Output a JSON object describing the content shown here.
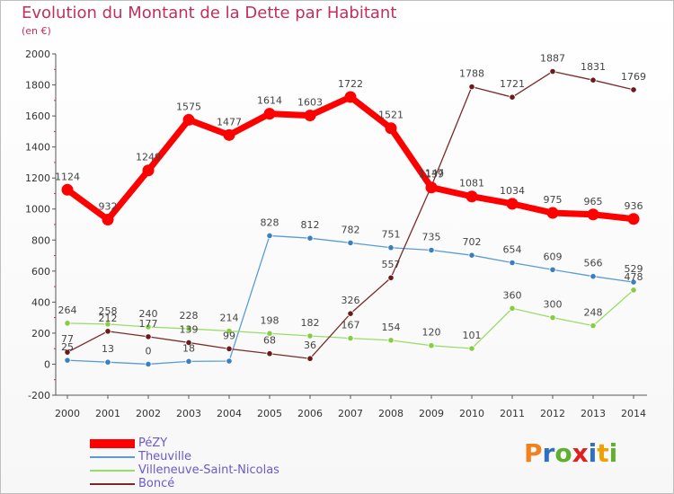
{
  "page": {
    "title": "Evolution du Montant de la Dette par Habitant",
    "subtitle": "(en €)"
  },
  "chart_data": {
    "type": "line",
    "title": "Evolution du Montant de la Dette par Habitant",
    "subtitle": "(en €)",
    "xlabel": "",
    "ylabel": "",
    "ylim": [
      -200,
      2000
    ],
    "yticks": [
      -200,
      0,
      200,
      400,
      600,
      800,
      1000,
      1200,
      1400,
      1600,
      1800,
      2000
    ],
    "categories": [
      "2000",
      "2001",
      "2002",
      "2003",
      "2004",
      "2005",
      "2006",
      "2007",
      "2008",
      "2009",
      "2010",
      "2011",
      "2012",
      "2013",
      "2014"
    ],
    "series": [
      {
        "name": "PéZY",
        "color": "#ff0000",
        "marker": "#ff0000",
        "bold": true,
        "values": [
          1124,
          932,
          1249,
          1575,
          1477,
          1614,
          1603,
          1722,
          1521,
          1139,
          1081,
          1034,
          975,
          965,
          936
        ],
        "labels": [
          "1124",
          "932",
          "1249",
          "1575",
          "1477",
          "1614",
          "1603",
          "1722",
          "1521",
          "1139",
          "1081",
          "1034",
          "975",
          "965",
          "936"
        ]
      },
      {
        "name": "Theuville",
        "color": "#5b9bd5",
        "marker": "#3a7fc0",
        "bold": false,
        "values": [
          25,
          13,
          0,
          18,
          20,
          828,
          812,
          782,
          751,
          735,
          702,
          654,
          609,
          566,
          529
        ],
        "labels": [
          "25",
          "13",
          "0",
          "18",
          "",
          "828",
          "812",
          "782",
          "751",
          "735",
          "702",
          "654",
          "609",
          "566",
          "529"
        ]
      },
      {
        "name": "Villeneuve-Saint-Nicolas",
        "color": "#99dd66",
        "marker": "#88cc44",
        "bold": false,
        "values": [
          264,
          258,
          240,
          228,
          214,
          198,
          182,
          167,
          154,
          120,
          101,
          360,
          300,
          248,
          478
        ],
        "labels": [
          "264",
          "258",
          "240",
          "228",
          "214",
          "198",
          "182",
          "167",
          "154",
          "120",
          "101",
          "360",
          "300",
          "248",
          "478"
        ]
      },
      {
        "name": "Boncé",
        "color": "#7a2a2a",
        "marker": "#6a1a1a",
        "bold": false,
        "values": [
          77,
          212,
          177,
          139,
          99,
          68,
          36,
          326,
          557,
          1147,
          1788,
          1721,
          1887,
          1831,
          1769
        ],
        "labels": [
          "77",
          "212",
          "177",
          "139",
          "99",
          "68",
          "36",
          "326",
          "557",
          "1147",
          "1788",
          "1721",
          "1887",
          "1831",
          "1769"
        ]
      }
    ],
    "legend": [
      "PéZY",
      "Theuville",
      "Villeneuve-Saint-Nicolas",
      "Boncé"
    ],
    "legend_position": "bottom-left",
    "grid": false
  },
  "logo": {
    "text": "Proxiti",
    "letters": [
      "P",
      "r",
      "o",
      "x",
      "i",
      "t",
      "i"
    ],
    "colors": [
      "#f08020",
      "#3070c0",
      "#60b030",
      "#e02020",
      "#3070c0",
      "#f0a000",
      "#60b030"
    ]
  }
}
